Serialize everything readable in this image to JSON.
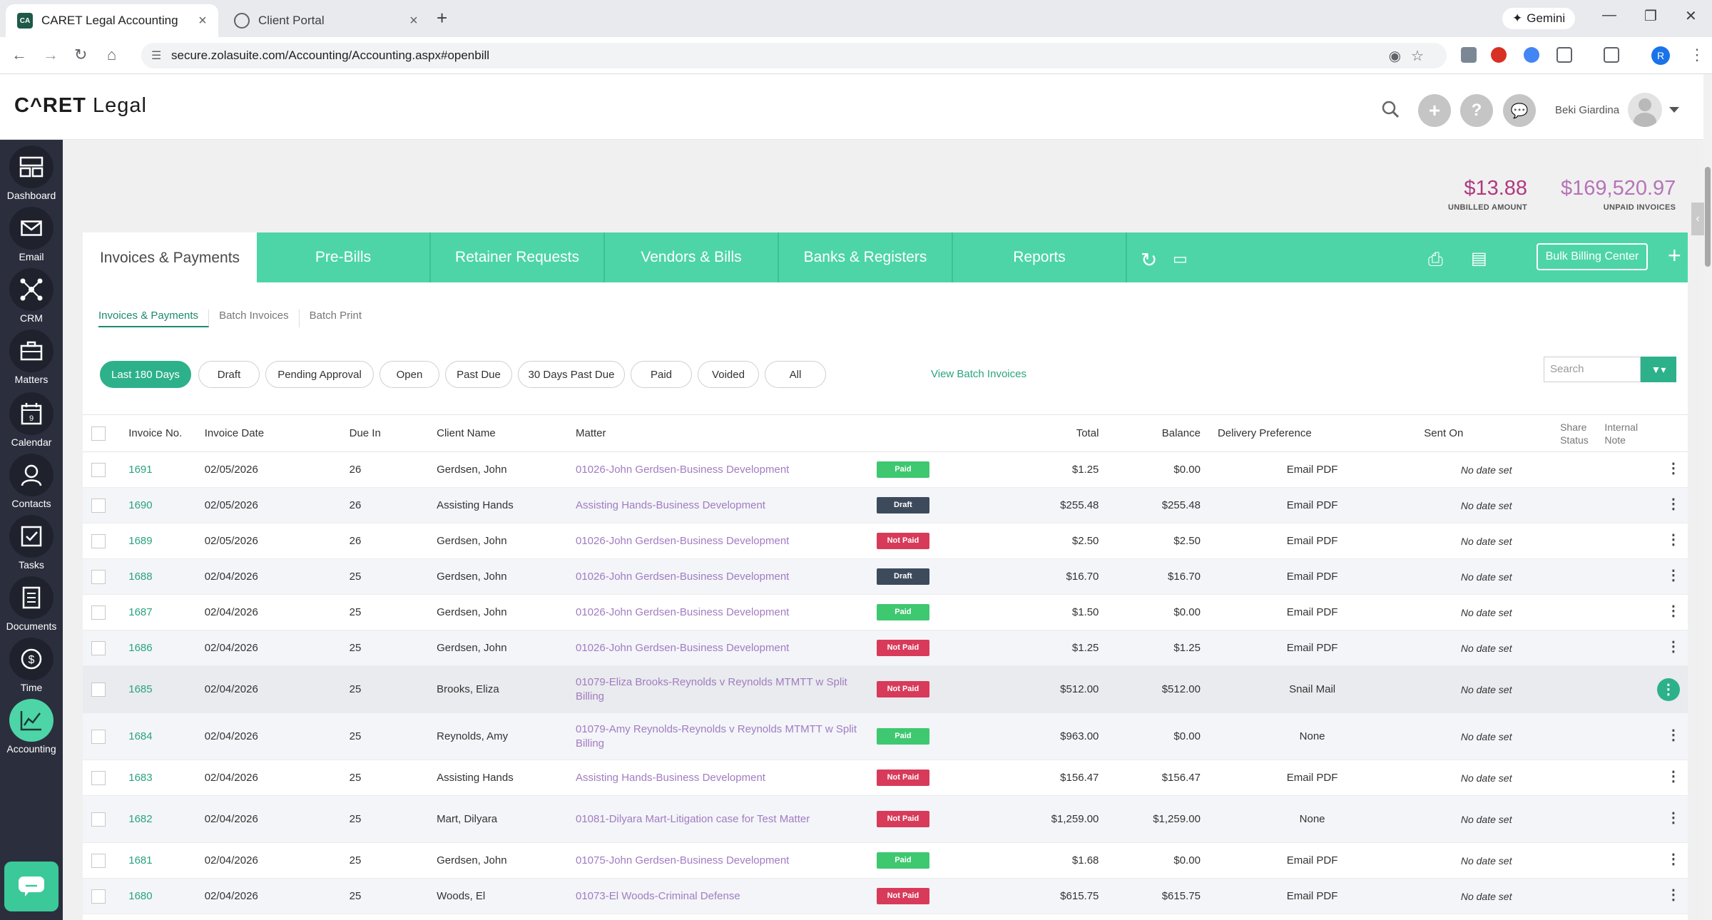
{
  "browser": {
    "tabs": [
      {
        "title": "CARET Legal Accounting",
        "favicon": "CA",
        "active": true
      },
      {
        "title": "Client Portal",
        "active": false
      }
    ],
    "gemini_label": "Gemini",
    "url": "secure.zolasuite.com/Accounting/Accounting.aspx#openbill",
    "profile_initial": "R"
  },
  "app": {
    "logo_main": "C^RET",
    "logo_sub": "Legal",
    "user_name": "Beki Giardina"
  },
  "sidebar": {
    "items": [
      {
        "label": "Dashboard",
        "icon": "dashboard-icon"
      },
      {
        "label": "Email",
        "icon": "email-icon"
      },
      {
        "label": "CRM",
        "icon": "crm-icon"
      },
      {
        "label": "Matters",
        "icon": "briefcase-icon"
      },
      {
        "label": "Calendar",
        "icon": "calendar-icon"
      },
      {
        "label": "Contacts",
        "icon": "contacts-icon"
      },
      {
        "label": "Tasks",
        "icon": "tasks-icon"
      },
      {
        "label": "Documents",
        "icon": "documents-icon"
      },
      {
        "label": "Time",
        "icon": "time-icon"
      },
      {
        "label": "Accounting",
        "icon": "accounting-icon",
        "active": true
      }
    ]
  },
  "summary": {
    "unbilled_value": "$13.88",
    "unbilled_label": "UNBILLED AMOUNT",
    "unpaid_value": "$169,520.97",
    "unpaid_label": "UNPAID INVOICES"
  },
  "tabs": {
    "items": [
      "Invoices & Payments",
      "Pre-Bills",
      "Retainer Requests",
      "Vendors & Bills",
      "Banks & Registers",
      "Reports"
    ],
    "bulk_label": "Bulk Billing Center"
  },
  "subtabs": [
    "Invoices & Payments",
    "Batch Invoices",
    "Batch Print"
  ],
  "filters": [
    "Last 180 Days",
    "Draft",
    "Pending Approval",
    "Open",
    "Past Due",
    "30 Days Past Due",
    "Paid",
    "Voided",
    "All"
  ],
  "view_batch_label": "View Batch Invoices",
  "search_placeholder": "Search",
  "table": {
    "headers": {
      "invoice_no": "Invoice No.",
      "invoice_date": "Invoice Date",
      "due_in": "Due In",
      "client": "Client Name",
      "matter": "Matter",
      "total": "Total",
      "balance": "Balance",
      "delivery": "Delivery Preference",
      "sent_on": "Sent On",
      "share_status": "Share Status",
      "internal_note": "Internal Note"
    },
    "status_colors": {
      "Paid": "#3ec870",
      "Draft": "#3d4a5c",
      "Not Paid": "#d83a5a"
    },
    "rows": [
      {
        "no": "1691",
        "date": "02/05/2026",
        "due": "26",
        "client": "Gerdsen, John",
        "matter": "01026-John Gerdsen-Business Development",
        "status": "Paid",
        "total": "$1.25",
        "balance": "$0.00",
        "delivery": "Email PDF",
        "sent": "No date set"
      },
      {
        "no": "1690",
        "date": "02/05/2026",
        "due": "26",
        "client": "Assisting Hands",
        "matter": "Assisting Hands-Business Development",
        "status": "Draft",
        "total": "$255.48",
        "balance": "$255.48",
        "delivery": "Email PDF",
        "sent": "No date set"
      },
      {
        "no": "1689",
        "date": "02/05/2026",
        "due": "26",
        "client": "Gerdsen, John",
        "matter": "01026-John Gerdsen-Business Development",
        "status": "Not Paid",
        "total": "$2.50",
        "balance": "$2.50",
        "delivery": "Email PDF",
        "sent": "No date set"
      },
      {
        "no": "1688",
        "date": "02/04/2026",
        "due": "25",
        "client": "Gerdsen, John",
        "matter": "01026-John Gerdsen-Business Development",
        "status": "Draft",
        "total": "$16.70",
        "balance": "$16.70",
        "delivery": "Email PDF",
        "sent": "No date set"
      },
      {
        "no": "1687",
        "date": "02/04/2026",
        "due": "25",
        "client": "Gerdsen, John",
        "matter": "01026-John Gerdsen-Business Development",
        "status": "Paid",
        "total": "$1.50",
        "balance": "$0.00",
        "delivery": "Email PDF",
        "sent": "No date set"
      },
      {
        "no": "1686",
        "date": "02/04/2026",
        "due": "25",
        "client": "Gerdsen, John",
        "matter": "01026-John Gerdsen-Business Development",
        "status": "Not Paid",
        "total": "$1.25",
        "balance": "$1.25",
        "delivery": "Email PDF",
        "sent": "No date set"
      },
      {
        "no": "1685",
        "date": "02/04/2026",
        "due": "25",
        "client": "Brooks, Eliza",
        "matter": "01079-Eliza Brooks-Reynolds v Reynolds MTMTT w Split Billing",
        "status": "Not Paid",
        "total": "$512.00",
        "balance": "$512.00",
        "delivery": "Snail Mail",
        "sent": "No date set"
      },
      {
        "no": "1684",
        "date": "02/04/2026",
        "due": "25",
        "client": "Reynolds, Amy",
        "matter": "01079-Amy Reynolds-Reynolds v Reynolds MTMTT w Split Billing",
        "status": "Paid",
        "total": "$963.00",
        "balance": "$0.00",
        "delivery": "None",
        "sent": "No date set"
      },
      {
        "no": "1683",
        "date": "02/04/2026",
        "due": "25",
        "client": "Assisting Hands",
        "matter": "Assisting Hands-Business Development",
        "status": "Not Paid",
        "total": "$156.47",
        "balance": "$156.47",
        "delivery": "Email PDF",
        "sent": "No date set"
      },
      {
        "no": "1682",
        "date": "02/04/2026",
        "due": "25",
        "client": "Mart, Dilyara",
        "matter": "01081-Dilyara Mart-Litigation case for Test Matter",
        "status": "Not Paid",
        "total": "$1,259.00",
        "balance": "$1,259.00",
        "delivery": "None",
        "sent": "No date set"
      },
      {
        "no": "1681",
        "date": "02/04/2026",
        "due": "25",
        "client": "Gerdsen, John",
        "matter": "01075-John Gerdsen-Business Development",
        "status": "Paid",
        "total": "$1.68",
        "balance": "$0.00",
        "delivery": "Email PDF",
        "sent": "No date set"
      },
      {
        "no": "1680",
        "date": "02/04/2026",
        "due": "25",
        "client": "Woods, El",
        "matter": "01073-El Woods-Criminal Defense",
        "status": "Not Paid",
        "total": "$615.75",
        "balance": "$615.75",
        "delivery": "Email PDF",
        "sent": "No date set"
      }
    ]
  }
}
